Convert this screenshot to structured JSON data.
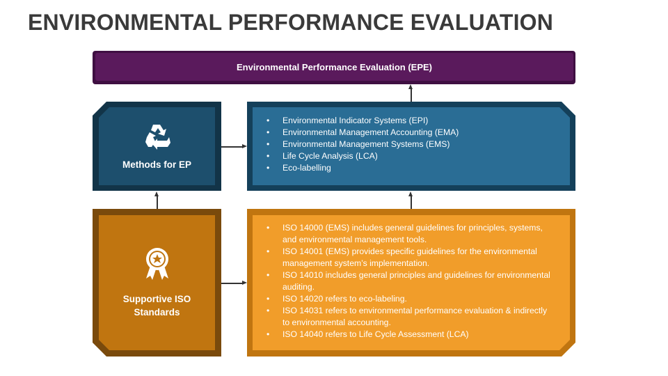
{
  "title": "ENVIRONMENTAL PERFORMANCE EVALUATION",
  "top_box": "Environmental Performance Evaluation (EPE)",
  "methods": {
    "label": "Methods for EP",
    "icon": "recycle-icon",
    "items": [
      "Environmental Indicator Systems (EPI)",
      "Environmental Management Accounting (EMA)",
      "Environmental Management Systems (EMS)",
      "Life Cycle Analysis (LCA)",
      "Eco-labelling"
    ]
  },
  "standards": {
    "label_line1": "Supportive ISO",
    "label_line2": "Standards",
    "icon": "award-ribbon-icon",
    "items": [
      "ISO 14000 (EMS) includes general guidelines for principles, systems, and environmental management tools.",
      "ISO 14001 (EMS) provides specific guidelines for the environmental management system’s implementation.",
      "ISO 14010 includes general principles and guidelines for environmental auditing.",
      "ISO 14020 refers to eco-labeling.",
      "ISO 14031 refers to environmental performance evaluation & indirectly to environmental accounting.",
      "ISO 14040 refers to Life Cycle Assessment (LCA)"
    ]
  },
  "colors": {
    "purple": "#5a1a5c",
    "blue_dark": "#1d4f6d",
    "blue": "#2a6d95",
    "orange_dark": "#c07510",
    "orange": "#f19d2a"
  }
}
